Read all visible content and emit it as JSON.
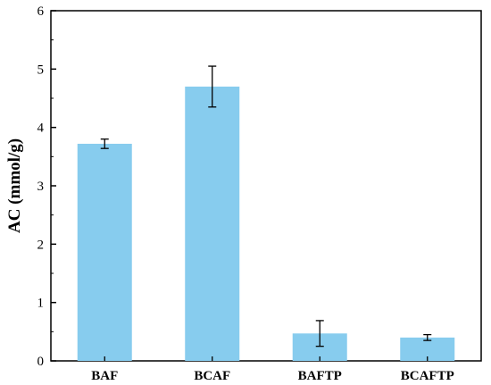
{
  "chart_data": {
    "type": "bar",
    "categories": [
      "BAF",
      "BCAF",
      "BAFTP",
      "BCAFTP"
    ],
    "values": [
      3.72,
      4.7,
      0.47,
      0.4
    ],
    "error": [
      0.08,
      0.35,
      0.22,
      0.05
    ],
    "ylabel": "AC (mmol/g)",
    "xlabel": "",
    "ylim": [
      0,
      6
    ],
    "yticks": [
      "0",
      "1",
      "2",
      "3",
      "4",
      "5",
      "6"
    ],
    "bar_color": "#87CCEE",
    "grid": false
  }
}
